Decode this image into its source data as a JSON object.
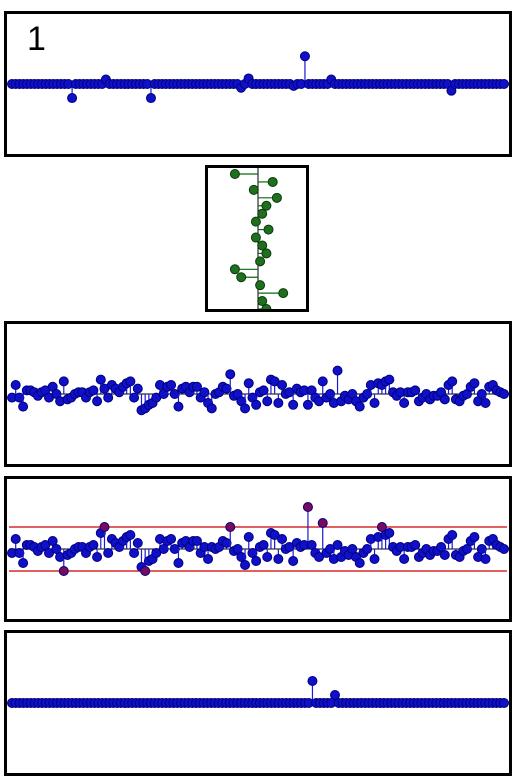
{
  "figure": {
    "panel_label": "1"
  },
  "colors": {
    "stem": "#1a1ad0",
    "marker": "#1010c8",
    "marker_edge": "#000080",
    "green_marker": "#1f6f1f",
    "green_stem": "#0a6a0a",
    "threshold": "#d00000",
    "clipped_marker": "#7a0a5a",
    "axis": "#000000"
  },
  "chart_data": [
    {
      "type": "stem",
      "id": "sparse-coefficients",
      "x": [
        0,
        6,
        13,
        18,
        23,
        28,
        32,
        36,
        40,
        45,
        50,
        55,
        60,
        64,
        68,
        72,
        76,
        80,
        84,
        88,
        92,
        96,
        100,
        104,
        108,
        112,
        116,
        120,
        124,
        128,
        132,
        136,
        140,
        144,
        148,
        152,
        156,
        160,
        164,
        168,
        172,
        176,
        180,
        184,
        188,
        192,
        196,
        200,
        204,
        208,
        212,
        216,
        220,
        224,
        228,
        232,
        236,
        240,
        244,
        248,
        252,
        256,
        260,
        264,
        268,
        272,
        276,
        280,
        284,
        288,
        292,
        296,
        300,
        304,
        308,
        312,
        316,
        320,
        324,
        328,
        332,
        336,
        340,
        344,
        348,
        352,
        356,
        360,
        364,
        368,
        372,
        376,
        380,
        384,
        388,
        392,
        396,
        400,
        404,
        408,
        412,
        416,
        420,
        424,
        428,
        432,
        436,
        440,
        444,
        448,
        452,
        456,
        460,
        464,
        468,
        472,
        476,
        480,
        484,
        488,
        492,
        496,
        500,
        504
      ],
      "y": [
        0,
        0,
        0,
        0,
        0,
        0,
        0,
        0,
        0,
        0,
        0,
        0,
        -0.38,
        0,
        0,
        0,
        0,
        0,
        0,
        0,
        0,
        0.12,
        0,
        0,
        0,
        0,
        0,
        0,
        0,
        0,
        0,
        0,
        0,
        0,
        0,
        0,
        0,
        0,
        0,
        0,
        0,
        0,
        -0.38,
        0,
        0,
        0,
        0,
        0,
        0,
        0,
        0,
        0,
        0,
        0,
        0,
        0,
        0,
        0,
        0,
        0,
        0,
        0,
        0,
        0,
        0,
        0,
        0,
        0,
        0,
        0,
        0,
        0,
        0,
        0,
        0,
        0,
        0,
        0,
        0,
        0,
        0,
        0,
        0,
        0,
        0,
        0,
        0,
        0,
        0,
        0,
        0,
        0,
        0,
        0,
        0,
        0,
        0,
        0,
        0,
        0,
        0,
        0,
        0,
        0,
        0,
        0,
        0,
        0,
        0,
        0,
        0,
        0,
        0,
        0,
        0,
        0,
        0,
        0,
        0,
        0,
        0,
        0,
        0,
        0
      ],
      "spikes": [
        {
          "x": 60,
          "y": -0.38
        },
        {
          "x": 95,
          "y": 0.12
        },
        {
          "x": 142,
          "y": -0.38
        },
        {
          "x": 236,
          "y": -0.1
        },
        {
          "x": 242,
          "y": 0.15
        },
        {
          "x": 290,
          "y": -0.05
        },
        {
          "x": 302,
          "y": 0.75
        },
        {
          "x": 328,
          "y": 0.12
        },
        {
          "x": 452,
          "y": -0.18
        }
      ],
      "ylim": [
        -1,
        1
      ]
    },
    {
      "type": "stem",
      "id": "green-vertical-snippet",
      "orientation": "vertical",
      "values": [
        -0.55,
        0.35,
        -0.1,
        0.45,
        0.2,
        0.1,
        -0.05,
        0.25,
        -0.05,
        0.1,
        0.2,
        0.05,
        -0.55,
        -0.4,
        0.05,
        0.6,
        0.1,
        0.2
      ],
      "xlim": [
        -1,
        1
      ]
    },
    {
      "type": "stem",
      "id": "noisy-coefficients",
      "values": [
        -0.1,
        0.25,
        -0.1,
        -0.35,
        0.1,
        0.1,
        0.05,
        -0.05,
        0.05,
        0.1,
        -0.1,
        0.2,
        0.0,
        -0.2,
        0.35,
        -0.15,
        -0.1,
        0.0,
        0.05,
        0.05,
        -0.1,
        0.05,
        0.1,
        -0.2,
        0.4,
        0.15,
        -0.1,
        0.25,
        0.15,
        0.05,
        0.2,
        0.3,
        0.35,
        -0.1,
        0.15,
        -0.45,
        -0.4,
        -0.3,
        -0.25,
        -0.1,
        0.25,
        0.0,
        0.2,
        0.25,
        0.0,
        -0.35,
        0.15,
        0.2,
        0.05,
        0.2,
        0.2,
        -0.1,
        0.05,
        -0.25,
        -0.4,
        0.0,
        0.05,
        0.2,
        0.15,
        0.55,
        -0.05,
        0.0,
        -0.2,
        -0.4,
        0.3,
        -0.1,
        -0.3,
        0.05,
        0.1,
        -0.2,
        0.4,
        0.35,
        -0.25,
        0.25,
        0.0,
        0.05,
        -0.3,
        0.15,
        0.05,
        0.1,
        -0.3,
        0.1,
        -0.1,
        -0.2,
        0.35,
        -0.1,
        0.0,
        -0.25,
        0.65,
        -0.2,
        -0.05,
        -0.15,
        0.0,
        -0.2,
        -0.35,
        -0.1,
        0.0,
        0.25,
        -0.25,
        0.3,
        0.25,
        0.35,
        0.4,
        0.05,
        -0.05,
        0.05,
        -0.25,
        0.05,
        0.05,
        0.1,
        -0.2,
        -0.1,
        0.0,
        -0.15,
        -0.05,
        -0.05,
        0.05,
        -0.15,
        0.25,
        0.35,
        -0.15,
        -0.2,
        -0.05,
        0.0,
        0.2,
        0.3,
        -0.2,
        0.0,
        -0.25,
        0.2,
        0.25,
        0.1,
        0.05,
        0.0
      ],
      "ylim": [
        -1,
        1
      ]
    },
    {
      "type": "stem",
      "id": "noisy-coefficients-threshold",
      "values": [
        -0.1,
        0.25,
        -0.1,
        -0.35,
        0.1,
        0.1,
        0.05,
        -0.05,
        0.05,
        0.1,
        -0.1,
        0.2,
        0.0,
        -0.2,
        -0.55,
        -0.15,
        -0.1,
        0.0,
        0.05,
        0.05,
        -0.1,
        0.05,
        0.1,
        -0.2,
        0.4,
        0.55,
        -0.1,
        0.25,
        0.15,
        0.05,
        0.2,
        0.3,
        0.35,
        -0.1,
        0.15,
        -0.45,
        -0.55,
        -0.3,
        -0.25,
        -0.1,
        0.25,
        0.0,
        0.2,
        0.25,
        0.0,
        -0.35,
        0.15,
        0.2,
        0.05,
        0.2,
        0.2,
        -0.1,
        0.05,
        -0.25,
        0.05,
        0.0,
        0.05,
        0.2,
        0.15,
        0.55,
        -0.05,
        0.0,
        -0.2,
        -0.4,
        0.3,
        -0.1,
        -0.3,
        0.05,
        0.1,
        -0.2,
        0.4,
        0.35,
        -0.25,
        0.25,
        0.0,
        0.05,
        -0.3,
        0.15,
        0.05,
        0.1,
        1.05,
        0.1,
        -0.1,
        -0.2,
        0.65,
        -0.1,
        0.0,
        -0.25,
        0.1,
        -0.2,
        -0.05,
        -0.15,
        0.0,
        -0.2,
        -0.35,
        -0.1,
        0.0,
        0.25,
        -0.25,
        0.3,
        0.55,
        0.35,
        0.4,
        0.05,
        -0.05,
        0.05,
        -0.25,
        0.05,
        0.05,
        0.1,
        -0.2,
        -0.1,
        0.0,
        -0.15,
        -0.05,
        -0.05,
        0.05,
        -0.15,
        0.25,
        0.35,
        -0.15,
        -0.2,
        -0.05,
        0.0,
        0.2,
        0.3,
        -0.2,
        0.0,
        -0.25,
        0.2,
        0.25,
        0.1,
        0.05,
        0.0
      ],
      "thresholds": [
        0.55,
        -0.55
      ],
      "ylim": [
        -1.2,
        1.2
      ]
    },
    {
      "type": "stem",
      "id": "recovered-sparse",
      "values_count": 132,
      "spikes": [
        {
          "index": 80,
          "y": 0.55
        },
        {
          "index": 86,
          "y": 0.2
        }
      ],
      "ylim": [
        -1,
        1
      ]
    }
  ]
}
